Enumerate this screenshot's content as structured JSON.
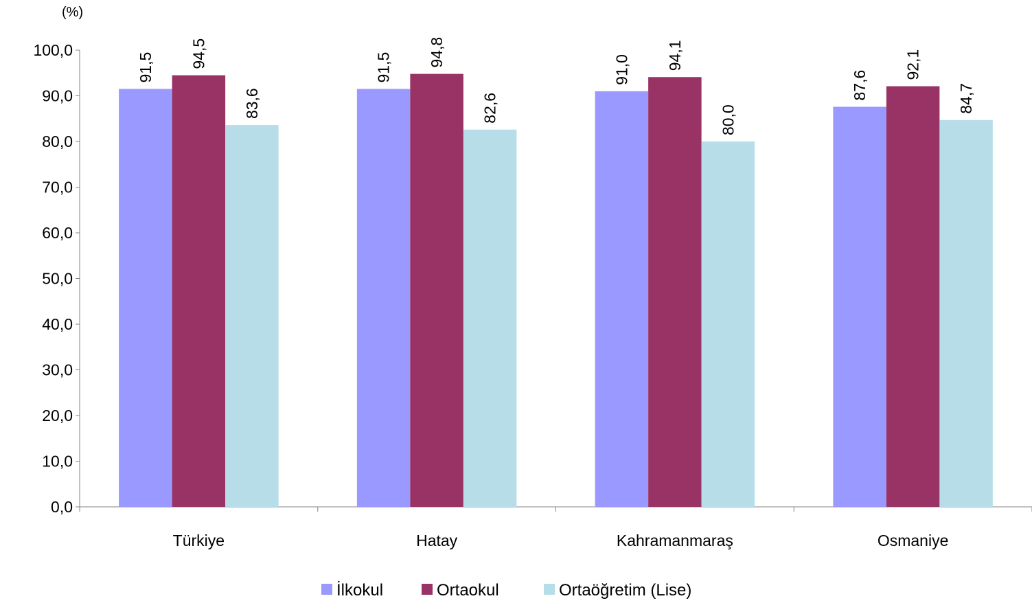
{
  "chart_data": {
    "type": "bar",
    "unit_label": "(%)",
    "categories": [
      "Türkiye",
      "Hatay",
      "Kahramanmaraş",
      "Osmaniye"
    ],
    "series": [
      {
        "name": "İlkokul",
        "color": "#9999FF",
        "values": [
          91.5,
          91.5,
          91.0,
          87.6
        ],
        "labels": [
          "91,5",
          "91,5",
          "91,0",
          "87,6"
        ]
      },
      {
        "name": "Ortaokul",
        "color": "#993366",
        "values": [
          94.5,
          94.8,
          94.1,
          92.1
        ],
        "labels": [
          "94,5",
          "94,8",
          "94,1",
          "92,1"
        ]
      },
      {
        "name": "Ortaöğretim (Lise)",
        "color": "#B7DEE8",
        "values": [
          83.6,
          82.6,
          80.0,
          84.7
        ],
        "labels": [
          "83,6",
          "82,6",
          "80,0",
          "84,7"
        ]
      }
    ],
    "ylim": [
      0,
      100
    ],
    "yticks": [
      "0,0",
      "10,0",
      "20,0",
      "30,0",
      "40,0",
      "50,0",
      "60,0",
      "70,0",
      "80,0",
      "90,0",
      "100,0"
    ],
    "grid": false,
    "legend_position": "bottom"
  }
}
